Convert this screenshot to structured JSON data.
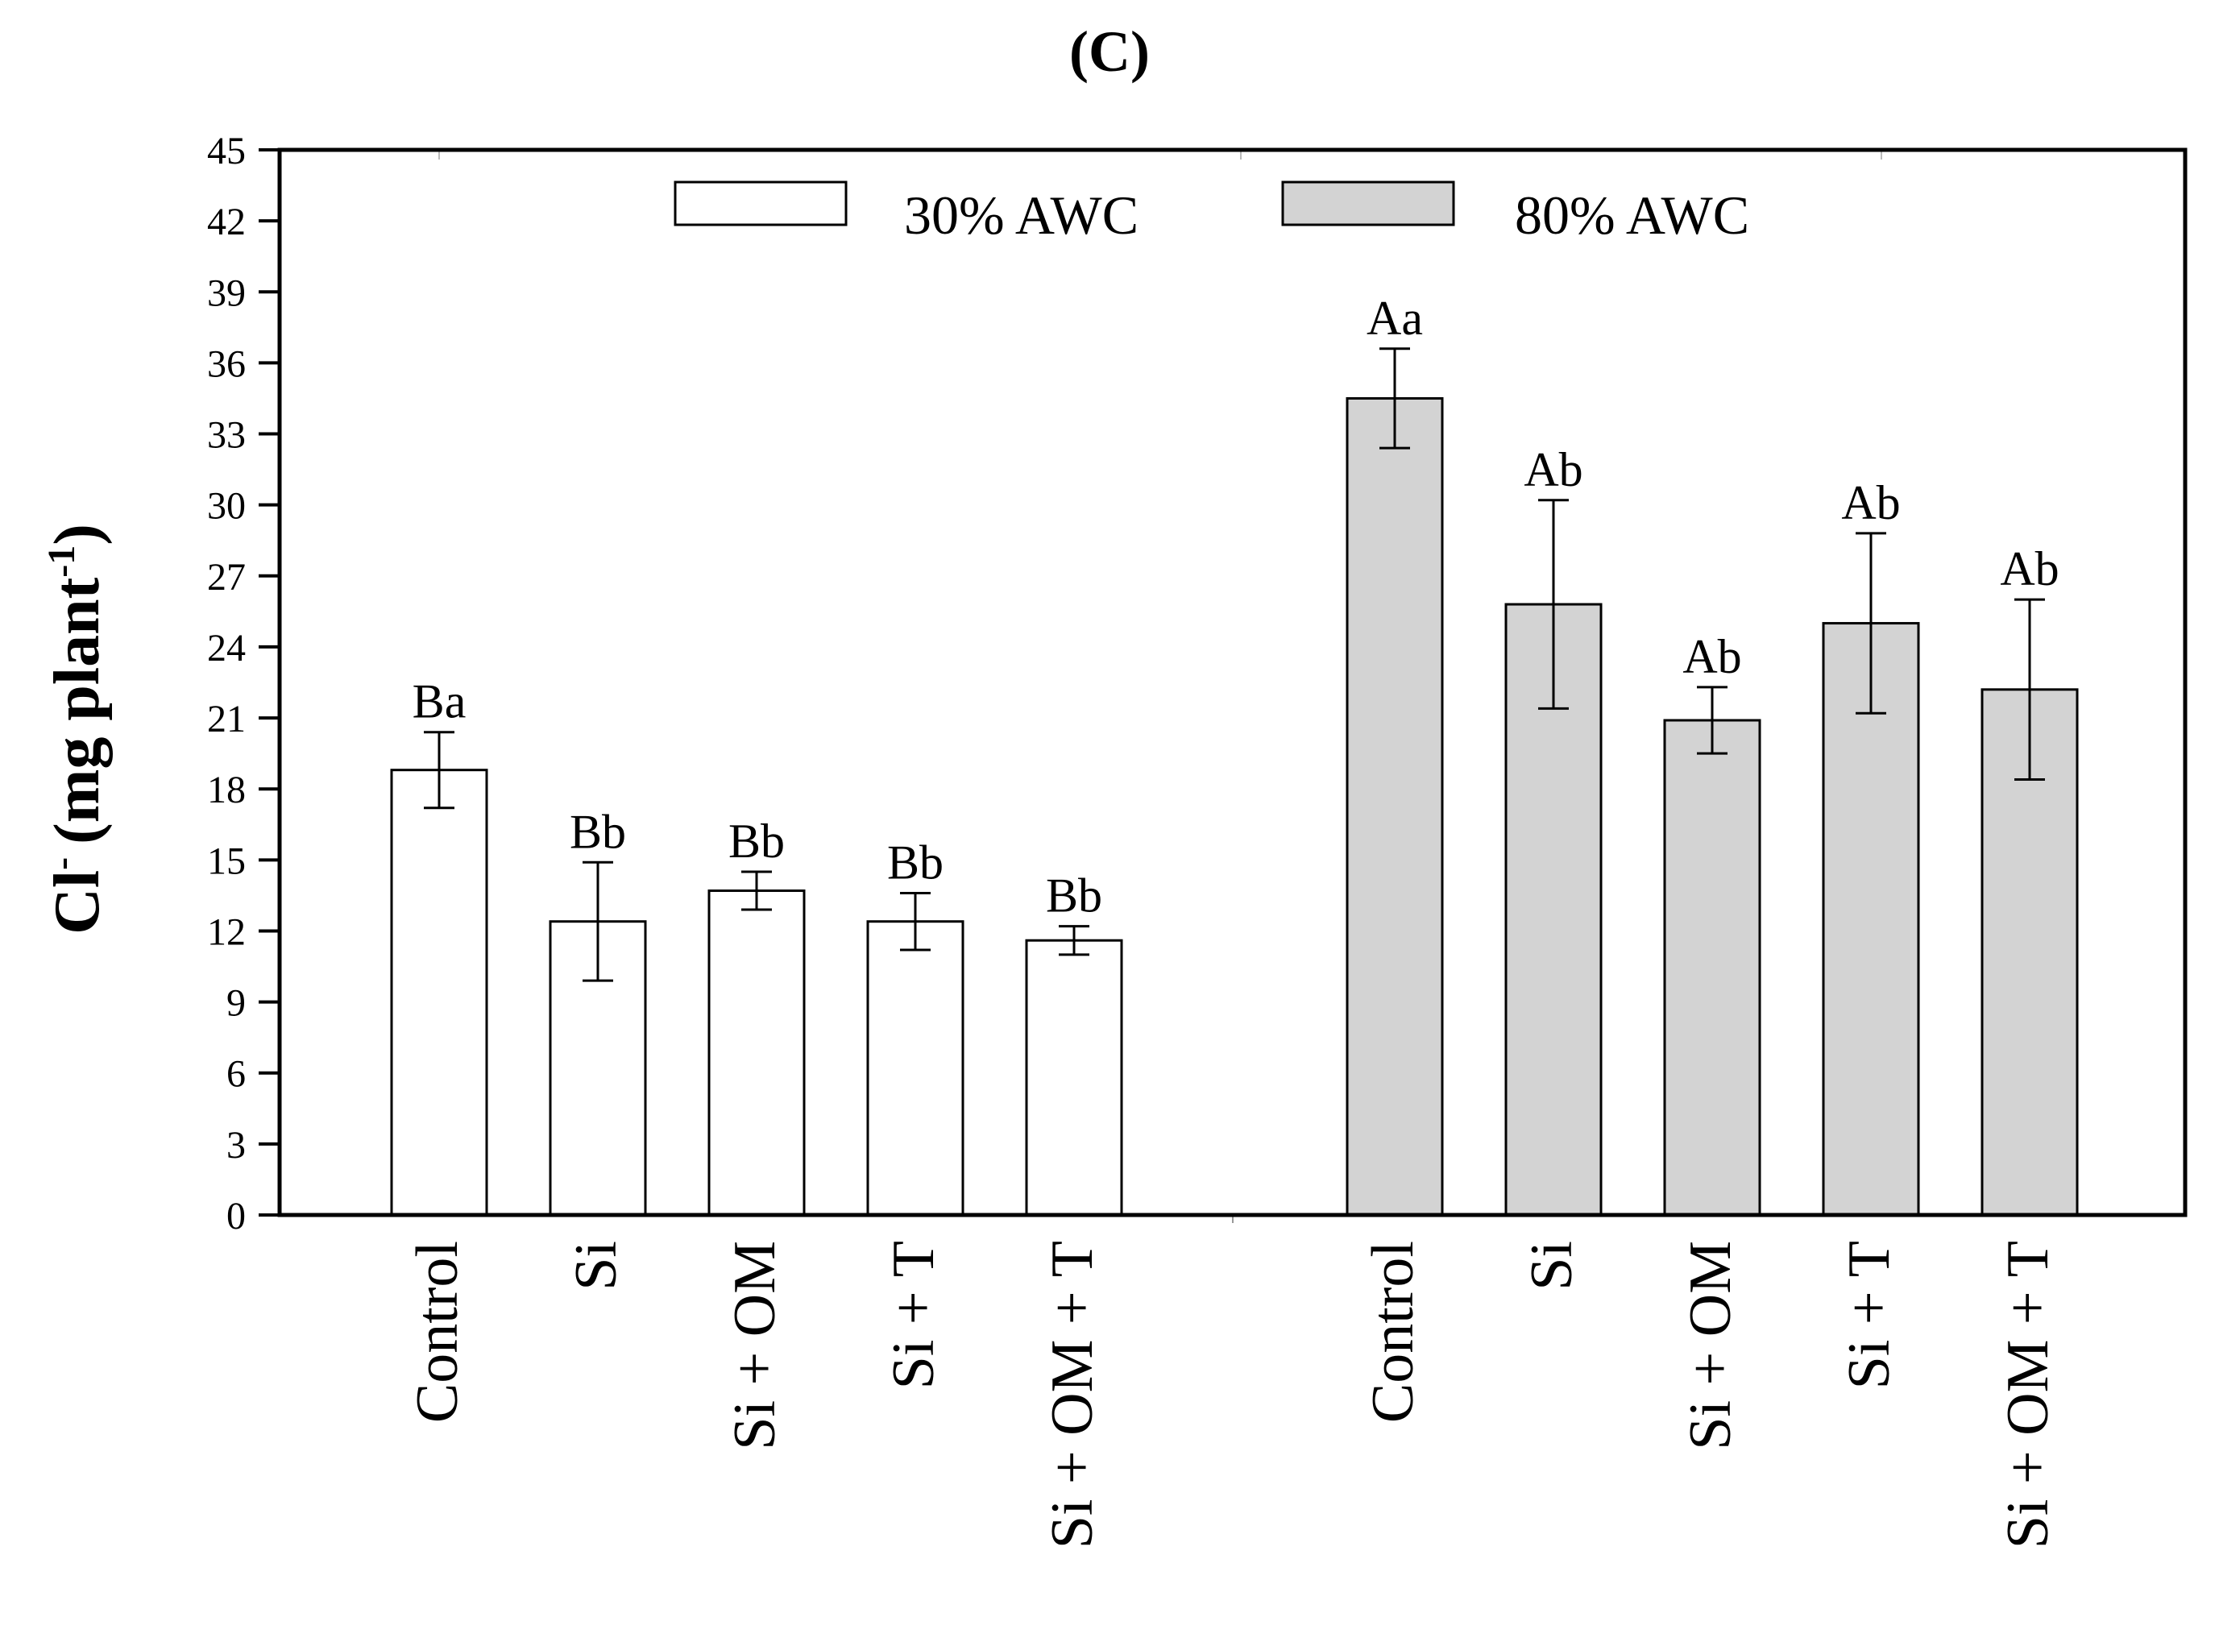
{
  "chart_data": {
    "type": "bar",
    "title": "(C)",
    "ylabel": "Cl",
    "ylabel_superscript": "-",
    "ylabel_unit": "(mg plant",
    "ylabel_unit_superscript": "-1",
    "ylabel_close": ")",
    "xlabel": "",
    "ylim": [
      0,
      45
    ],
    "yticks": [
      "0",
      "3",
      "6",
      "9",
      "12",
      "15",
      "18",
      "21",
      "24",
      "27",
      "30",
      "33",
      "36",
      "39",
      "42",
      "45"
    ],
    "categories": [
      "Control",
      "Si",
      "Si + OM",
      "Si + T",
      "Si + OM + T"
    ],
    "legend_position": "top",
    "series": [
      {
        "name": "30% AWC",
        "color": "#ffffff",
        "values": [
          18.8,
          12.4,
          13.7,
          12.4,
          11.6
        ],
        "errors": [
          1.6,
          2.5,
          0.8,
          1.2,
          0.6
        ],
        "labels": [
          "Ba",
          "Bb",
          "Bb",
          "Bb",
          "Bb"
        ]
      },
      {
        "name": "80% AWC",
        "color": "#d3d3d3",
        "values": [
          34.5,
          25.8,
          20.9,
          25.0,
          22.2
        ],
        "errors": [
          2.1,
          4.4,
          1.4,
          3.8,
          3.8
        ],
        "labels": [
          "Aa",
          "Ab",
          "Ab",
          "Ab",
          "Ab"
        ]
      }
    ]
  }
}
